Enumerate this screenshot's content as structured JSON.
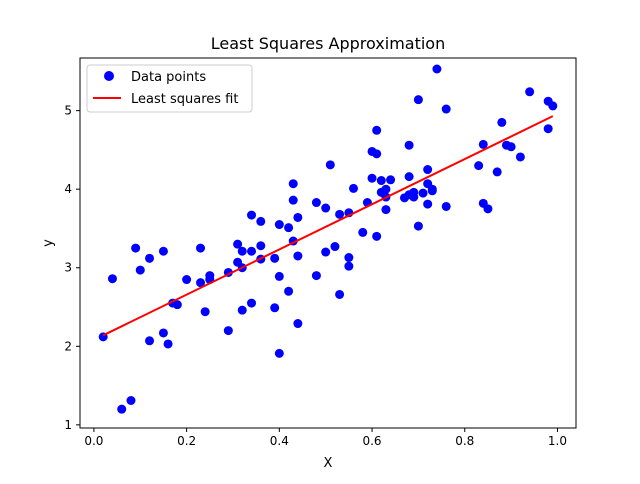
{
  "chart_data": {
    "type": "scatter",
    "title": "Least Squares Approximation",
    "xlabel": "X",
    "ylabel": "y",
    "xlim": [
      -0.03,
      1.04
    ],
    "ylim": [
      0.96,
      5.67
    ],
    "x_ticks": [
      "0.0",
      "0.2",
      "0.4",
      "0.6",
      "0.8",
      "1.0"
    ],
    "y_ticks": [
      "1",
      "2",
      "3",
      "4",
      "5"
    ],
    "grid": false,
    "legend_position": "upper-left",
    "series": [
      {
        "name": "Data points",
        "kind": "scatter",
        "color": "#0000ff",
        "points": [
          [
            0.02,
            2.12
          ],
          [
            0.04,
            2.86
          ],
          [
            0.06,
            1.2
          ],
          [
            0.08,
            1.31
          ],
          [
            0.09,
            3.25
          ],
          [
            0.1,
            2.97
          ],
          [
            0.12,
            2.07
          ],
          [
            0.12,
            3.12
          ],
          [
            0.15,
            2.17
          ],
          [
            0.15,
            3.21
          ],
          [
            0.16,
            2.03
          ],
          [
            0.17,
            2.55
          ],
          [
            0.18,
            2.53
          ],
          [
            0.2,
            2.85
          ],
          [
            0.23,
            2.81
          ],
          [
            0.23,
            3.25
          ],
          [
            0.24,
            2.44
          ],
          [
            0.25,
            2.85
          ],
          [
            0.25,
            2.9
          ],
          [
            0.29,
            2.94
          ],
          [
            0.29,
            2.2
          ],
          [
            0.31,
            3.07
          ],
          [
            0.31,
            3.3
          ],
          [
            0.32,
            2.46
          ],
          [
            0.32,
            3.0
          ],
          [
            0.32,
            3.21
          ],
          [
            0.34,
            3.67
          ],
          [
            0.34,
            3.21
          ],
          [
            0.34,
            2.55
          ],
          [
            0.36,
            3.11
          ],
          [
            0.36,
            3.28
          ],
          [
            0.36,
            3.59
          ],
          [
            0.39,
            3.12
          ],
          [
            0.39,
            2.49
          ],
          [
            0.4,
            3.55
          ],
          [
            0.4,
            2.89
          ],
          [
            0.4,
            1.91
          ],
          [
            0.42,
            2.7
          ],
          [
            0.42,
            3.51
          ],
          [
            0.43,
            3.86
          ],
          [
            0.43,
            3.34
          ],
          [
            0.43,
            4.07
          ],
          [
            0.44,
            3.15
          ],
          [
            0.44,
            2.29
          ],
          [
            0.44,
            3.64
          ],
          [
            0.48,
            2.9
          ],
          [
            0.48,
            3.83
          ],
          [
            0.5,
            3.2
          ],
          [
            0.5,
            3.76
          ],
          [
            0.51,
            4.31
          ],
          [
            0.52,
            3.27
          ],
          [
            0.53,
            3.68
          ],
          [
            0.53,
            2.66
          ],
          [
            0.55,
            3.02
          ],
          [
            0.55,
            3.13
          ],
          [
            0.55,
            3.7
          ],
          [
            0.56,
            4.01
          ],
          [
            0.58,
            3.45
          ],
          [
            0.59,
            3.83
          ],
          [
            0.6,
            4.48
          ],
          [
            0.6,
            4.14
          ],
          [
            0.61,
            3.4
          ],
          [
            0.61,
            4.45
          ],
          [
            0.61,
            4.75
          ],
          [
            0.62,
            4.11
          ],
          [
            0.62,
            3.96
          ],
          [
            0.63,
            3.74
          ],
          [
            0.63,
            3.9
          ],
          [
            0.63,
            4.0
          ],
          [
            0.64,
            4.12
          ],
          [
            0.67,
            3.89
          ],
          [
            0.68,
            4.16
          ],
          [
            0.68,
            3.93
          ],
          [
            0.68,
            4.56
          ],
          [
            0.69,
            3.9
          ],
          [
            0.69,
            3.96
          ],
          [
            0.7,
            5.14
          ],
          [
            0.7,
            3.53
          ],
          [
            0.71,
            3.95
          ],
          [
            0.72,
            4.25
          ],
          [
            0.72,
            3.81
          ],
          [
            0.72,
            4.07
          ],
          [
            0.73,
            4.0
          ],
          [
            0.73,
            3.98
          ],
          [
            0.74,
            5.53
          ],
          [
            0.76,
            5.02
          ],
          [
            0.76,
            3.78
          ],
          [
            0.83,
            4.3
          ],
          [
            0.84,
            4.57
          ],
          [
            0.84,
            3.82
          ],
          [
            0.85,
            3.75
          ],
          [
            0.87,
            4.22
          ],
          [
            0.88,
            4.85
          ],
          [
            0.89,
            4.56
          ],
          [
            0.9,
            4.54
          ],
          [
            0.92,
            4.41
          ],
          [
            0.94,
            5.24
          ],
          [
            0.98,
            4.77
          ],
          [
            0.98,
            5.12
          ],
          [
            0.99,
            5.06
          ]
        ]
      },
      {
        "name": "Least squares fit",
        "kind": "line",
        "color": "#ff0000",
        "points": [
          [
            0.02,
            2.14
          ],
          [
            0.99,
            4.93
          ]
        ]
      }
    ]
  }
}
